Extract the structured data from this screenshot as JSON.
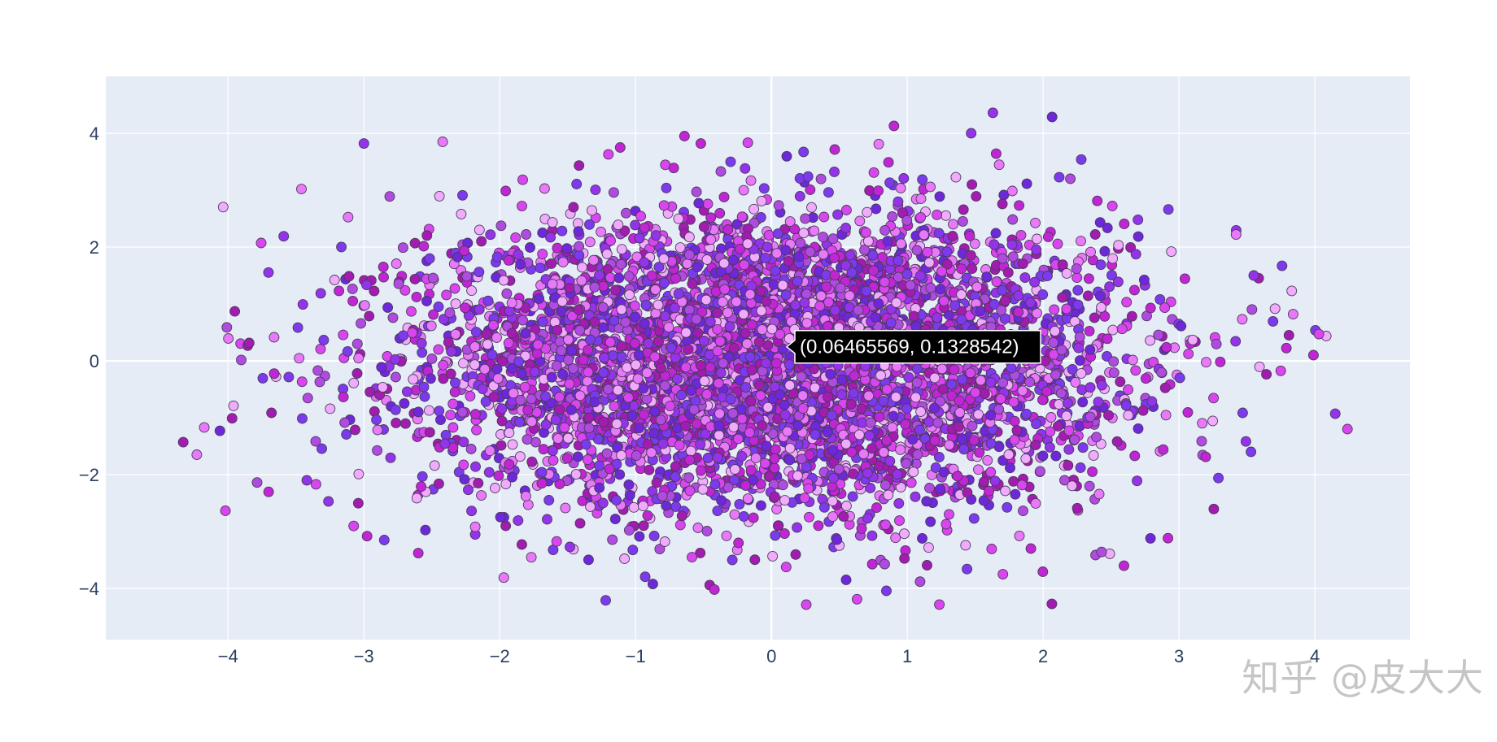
{
  "chart_data": {
    "type": "scatter",
    "title": "",
    "xlabel": "",
    "ylabel": "",
    "xlim": [
      -4.9,
      4.7
    ],
    "ylim": [
      -4.9,
      5.0
    ],
    "x_ticks": [
      -4,
      -3,
      -2,
      -1,
      0,
      1,
      2,
      3,
      4
    ],
    "x_tick_labels": [
      "−4",
      "−3",
      "−2",
      "−1",
      "0",
      "1",
      "2",
      "3",
      "4"
    ],
    "y_ticks": [
      -4,
      -2,
      0,
      2,
      4
    ],
    "y_tick_labels": [
      "−4",
      "−2",
      "0",
      "2",
      "4"
    ],
    "grid": true,
    "background": "#E5ECF6",
    "marker_colors": [
      "#D946EF",
      "#C026D3",
      "#A21CAF",
      "#9333EA",
      "#7C3AED",
      "#E879F9",
      "#F0ABFC",
      "#6D28D9",
      "#B04BE0"
    ],
    "marker_edge_color": "#4a3a5a",
    "distribution": {
      "x_std": 1.0,
      "y_std": 1.0,
      "note_points": 6000
    },
    "points": [
      [
        -4.33,
        -1.43
      ],
      [
        -4.23,
        -1.65
      ],
      [
        -3.97,
        -1.01
      ],
      [
        -3.96,
        -0.79
      ],
      [
        -3.95,
        0.87
      ],
      [
        -4.06,
        -1.23
      ],
      [
        -3.0,
        3.82
      ],
      [
        -2.42,
        3.85
      ],
      [
        -3.46,
        3.02
      ],
      [
        -3.59,
        2.19
      ],
      [
        -2.81,
        2.89
      ],
      [
        -3.42,
        -2.1
      ],
      [
        -2.85,
        -3.15
      ],
      [
        -2.6,
        -3.38
      ],
      [
        -1.97,
        -3.81
      ],
      [
        -1.22,
        -4.21
      ],
      [
        -0.42,
        -4.02
      ],
      [
        0.63,
        -4.19
      ],
      [
        0.55,
        -3.85
      ],
      [
        1.44,
        -3.66
      ],
      [
        1.63,
        4.36
      ],
      [
        1.47,
        4.0
      ],
      [
        0.79,
        3.81
      ],
      [
        -0.64,
        3.95
      ],
      [
        -0.52,
        3.82
      ],
      [
        -1.2,
        3.63
      ],
      [
        3.42,
        2.22
      ],
      [
        3.55,
        1.5
      ],
      [
        3.83,
        1.23
      ],
      [
        4.03,
        0.47
      ],
      [
        3.99,
        0.1
      ],
      [
        4.15,
        -0.93
      ],
      [
        4.24,
        -1.2
      ],
      [
        3.84,
        0.82
      ],
      [
        2.79,
        -3.12
      ],
      [
        2.43,
        -3.36
      ],
      [
        1.91,
        -3.3
      ],
      [
        3.29,
        -2.06
      ],
      [
        3.53,
        -1.6
      ],
      [
        2.2,
        3.2
      ]
    ],
    "tooltip": {
      "text": "(0.06465569, 0.1328542)",
      "x": 0.06465569,
      "y": 0.1328542
    }
  },
  "watermark": {
    "text": "知乎 @皮大大"
  }
}
